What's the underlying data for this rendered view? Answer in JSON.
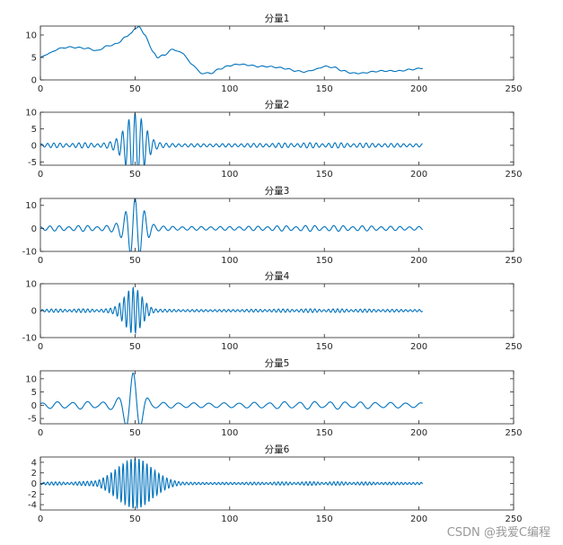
{
  "chart_data": [
    {
      "type": "line",
      "title": "分量1",
      "xlim": [
        0,
        250
      ],
      "ylim": [
        0,
        12
      ],
      "xticks": [
        0,
        50,
        100,
        150,
        200,
        250
      ],
      "yticks": [
        0,
        5,
        10
      ],
      "kind": "trend",
      "anchors": [
        [
          0,
          5
        ],
        [
          5,
          6
        ],
        [
          10,
          7
        ],
        [
          15,
          7.3
        ],
        [
          20,
          7.2
        ],
        [
          25,
          7
        ],
        [
          30,
          6.5
        ],
        [
          35,
          7.5
        ],
        [
          40,
          8
        ],
        [
          45,
          9.5
        ],
        [
          48,
          10.5
        ],
        [
          50,
          11.3
        ],
        [
          52,
          12
        ],
        [
          55,
          10
        ],
        [
          60,
          6
        ],
        [
          62,
          5
        ],
        [
          65,
          5.5
        ],
        [
          70,
          6.8
        ],
        [
          75,
          6
        ],
        [
          80,
          3.5
        ],
        [
          85,
          1.5
        ],
        [
          90,
          1.5
        ],
        [
          95,
          2.5
        ],
        [
          100,
          3.2
        ],
        [
          105,
          3.5
        ],
        [
          110,
          3.3
        ],
        [
          115,
          3
        ],
        [
          120,
          3
        ],
        [
          125,
          2.8
        ],
        [
          130,
          2.5
        ],
        [
          135,
          2
        ],
        [
          140,
          1.8
        ],
        [
          145,
          2.3
        ],
        [
          150,
          3
        ],
        [
          155,
          2.8
        ],
        [
          160,
          2
        ],
        [
          165,
          1.5
        ],
        [
          170,
          1.5
        ],
        [
          175,
          1.8
        ],
        [
          180,
          2
        ],
        [
          190,
          2
        ],
        [
          195,
          2.3
        ],
        [
          202,
          2.6
        ]
      ]
    },
    {
      "type": "line",
      "title": "分量2",
      "xlim": [
        0,
        250
      ],
      "ylim": [
        -6,
        10
      ],
      "xticks": [
        0,
        50,
        100,
        150,
        200,
        250
      ],
      "yticks": [
        -5,
        0,
        5,
        10
      ],
      "kind": "osc",
      "center": 50,
      "amp": 9,
      "width": 5,
      "period": 3.3,
      "baseAmp": 0.8,
      "endX": 202,
      "baseline": 0
    },
    {
      "type": "line",
      "title": "分量3",
      "xlim": [
        0,
        250
      ],
      "ylim": [
        -10,
        13
      ],
      "xticks": [
        0,
        50,
        100,
        150,
        200,
        250
      ],
      "yticks": [
        -10,
        0,
        10
      ],
      "kind": "osc",
      "center": 50,
      "amp": 12,
      "width": 4.5,
      "period": 5,
      "baseAmp": 1.3,
      "endX": 202,
      "baseline": 0
    },
    {
      "type": "line",
      "title": "分量4",
      "xlim": [
        0,
        250
      ],
      "ylim": [
        -10,
        10
      ],
      "xticks": [
        0,
        50,
        100,
        150,
        200,
        250
      ],
      "yticks": [
        -10,
        0,
        10
      ],
      "kind": "osc",
      "center": 49,
      "amp": 8,
      "width": 4.5,
      "period": 2.4,
      "baseAmp": 0.7,
      "endX": 202,
      "baseline": 0
    },
    {
      "type": "line",
      "title": "分量5",
      "xlim": [
        0,
        250
      ],
      "ylim": [
        -7,
        13
      ],
      "xticks": [
        0,
        50,
        100,
        150,
        200,
        250
      ],
      "yticks": [
        -5,
        0,
        5,
        10
      ],
      "kind": "osc",
      "center": 49,
      "amp": 11,
      "width": 4,
      "period": 8,
      "baseAmp": 1.5,
      "endX": 202,
      "baseline": 0
    },
    {
      "type": "line",
      "title": "分量6",
      "xlim": [
        0,
        250
      ],
      "ylim": [
        -5,
        5
      ],
      "xticks": [
        0,
        50,
        100,
        150,
        200,
        250
      ],
      "yticks": [
        -4,
        -2,
        0,
        2,
        4
      ],
      "kind": "osc",
      "center": 50,
      "amp": 4.5,
      "width": 9,
      "period": 2.1,
      "baseAmp": 0.35,
      "endX": 202,
      "baseline": 0
    }
  ],
  "watermark": "CSDN @我爱C编程",
  "colors": {
    "line": "#0072BD",
    "axis": "#262626"
  }
}
